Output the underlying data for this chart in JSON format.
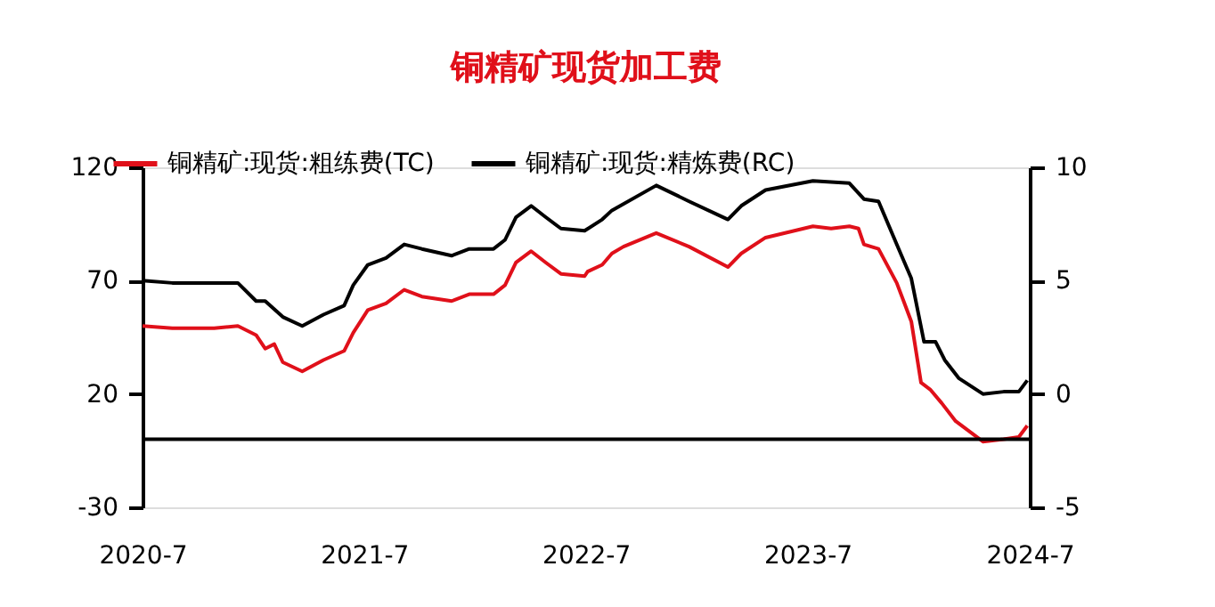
{
  "chart_data": {
    "type": "line",
    "title": "铜精矿现货加工费",
    "xlim": [
      "2020-07-01",
      "2024-07-01"
    ],
    "xticks": [
      {
        "value": "2020-07-01",
        "label": "2020-7"
      },
      {
        "value": "2021-07-01",
        "label": "2021-7"
      },
      {
        "value": "2022-07-01",
        "label": "2022-7"
      },
      {
        "value": "2023-07-01",
        "label": "2023-7"
      },
      {
        "value": "2024-07-01",
        "label": "2024-7"
      }
    ],
    "ylim": [
      -30,
      120
    ],
    "yticks": [
      -30,
      20,
      70,
      120
    ],
    "y2lim": [
      -5,
      10
    ],
    "y2ticks": [
      -5,
      0,
      5,
      10
    ],
    "grid": false,
    "legend": "top",
    "marker": "none",
    "line_style": "solid",
    "ref_lines": [
      {
        "axis": "y",
        "value": 0,
        "color": "#000000"
      }
    ],
    "series": [
      {
        "name": "铜精矿:现货:粗练费(TC)",
        "color": "#e0101a",
        "axis": "y",
        "x": [
          "2020-07-01",
          "2020-08-19",
          "2020-10-27",
          "2020-12-05",
          "2021-01-04",
          "2021-01-19",
          "2021-02-03",
          "2021-02-17",
          "2021-03-21",
          "2021-04-25",
          "2021-05-29",
          "2021-06-13",
          "2021-07-07",
          "2021-08-06",
          "2021-09-05",
          "2021-10-04",
          "2021-11-22",
          "2021-12-21",
          "2022-01-30",
          "2022-02-18",
          "2022-03-08",
          "2022-04-02",
          "2022-04-26",
          "2022-05-21",
          "2022-06-29",
          "2022-07-04",
          "2022-07-28",
          "2022-08-13",
          "2022-09-01",
          "2022-10-25",
          "2022-12-18",
          "2023-02-20",
          "2023-03-14",
          "2023-04-23",
          "2023-07-10",
          "2023-08-09",
          "2023-09-08",
          "2023-09-23",
          "2023-10-02",
          "2023-10-26",
          "2023-11-25",
          "2023-12-19",
          "2024-01-04",
          "2024-01-19",
          "2024-02-07",
          "2024-03-01",
          "2024-04-15",
          "2024-05-19",
          "2024-06-13",
          "2024-06-27"
        ],
        "values": [
          50,
          49,
          49,
          50,
          46,
          40,
          42,
          34,
          30,
          35,
          39,
          47,
          57,
          60,
          66,
          63,
          61,
          64,
          64,
          68,
          78,
          83,
          78,
          73,
          72,
          74,
          77,
          82,
          85,
          91,
          85,
          76,
          82,
          89,
          94,
          93,
          94,
          93,
          86,
          84,
          69,
          52,
          25,
          22,
          16,
          8,
          -1,
          0,
          1,
          6
        ]
      },
      {
        "name": "铜精矿:现货:精炼费(RC)",
        "color": "#000000",
        "axis": "y2",
        "x": [
          "2020-07-01",
          "2020-08-19",
          "2020-12-05",
          "2021-01-04",
          "2021-01-19",
          "2021-02-17",
          "2021-03-21",
          "2021-04-25",
          "2021-05-29",
          "2021-06-13",
          "2021-07-07",
          "2021-08-06",
          "2021-09-05",
          "2021-10-04",
          "2021-11-22",
          "2021-12-21",
          "2022-01-30",
          "2022-02-18",
          "2022-03-08",
          "2022-04-02",
          "2022-04-26",
          "2022-05-21",
          "2022-06-29",
          "2022-07-28",
          "2022-08-13",
          "2022-10-25",
          "2022-12-18",
          "2023-02-20",
          "2023-03-14",
          "2023-04-23",
          "2023-07-10",
          "2023-09-08",
          "2023-10-02",
          "2023-10-26",
          "2023-11-25",
          "2023-12-19",
          "2024-01-09",
          "2024-01-28",
          "2024-02-12",
          "2024-03-06",
          "2024-04-15",
          "2024-05-19",
          "2024-06-13",
          "2024-06-27"
        ],
        "values": [
          5.0,
          4.9,
          4.9,
          4.1,
          4.1,
          3.4,
          3.0,
          3.5,
          3.9,
          4.8,
          5.7,
          6.0,
          6.6,
          6.4,
          6.1,
          6.4,
          6.4,
          6.8,
          7.8,
          8.3,
          7.8,
          7.3,
          7.2,
          7.7,
          8.1,
          9.2,
          8.5,
          7.7,
          8.3,
          9.0,
          9.4,
          9.3,
          8.6,
          8.5,
          6.6,
          5.1,
          2.3,
          2.3,
          1.5,
          0.7,
          0.0,
          0.1,
          0.1,
          0.6
        ]
      }
    ]
  }
}
